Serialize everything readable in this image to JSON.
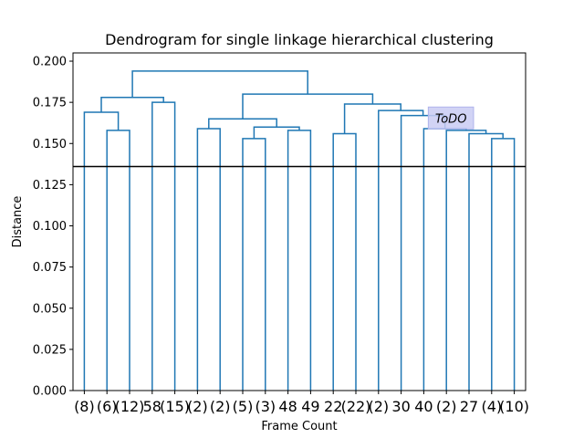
{
  "chart_data": {
    "type": "dendrogram",
    "title": "Dendrogram for single linkage hierarchical clustering",
    "xlabel": "Frame Count",
    "ylabel": "Distance",
    "ylim": [
      0,
      0.205
    ],
    "yticks": [
      "0.000",
      "0.025",
      "0.050",
      "0.075",
      "0.100",
      "0.125",
      "0.150",
      "0.175",
      "0.200"
    ],
    "ytick_values": [
      0,
      0.025,
      0.05,
      0.075,
      0.1,
      0.125,
      0.15,
      0.175,
      0.2
    ],
    "leaf_labels": [
      "(8)",
      "(6)",
      "(12)",
      "58",
      "(15)",
      "(2)",
      "(2)",
      "(5)",
      "(3)",
      "48",
      "49",
      "22",
      "(22)",
      "(2)",
      "30",
      "40",
      "(2)",
      "27",
      "(4)",
      "(10)"
    ],
    "cut_line": 0.136,
    "link_color": "#1f77b4",
    "cut_color": "#000000",
    "annotation": {
      "text": "ToDO",
      "x_between_leaves": [
        15.2,
        17.2
      ],
      "y": 0.1655
    },
    "merges": [
      {
        "left": "L0",
        "right": "L1",
        "height": 0.169
      },
      {
        "left": "L1",
        "right": "L2",
        "height": 0.158
      },
      {
        "left": "L3",
        "right": "L4",
        "height": 0.175
      },
      {
        "left": "L5",
        "right": "L6",
        "height": 0.159
      },
      {
        "left": "L7",
        "right": "L8",
        "height": 0.153
      },
      {
        "left": "L9",
        "right": "L10",
        "height": 0.158
      }
    ],
    "tree": {
      "h": 0.194,
      "c": [
        {
          "h": 0.178,
          "c": [
            {
              "h": 0.169,
              "c": [
                {
                  "leaf": 0
                },
                {
                  "h": 0.158,
                  "c": [
                    {
                      "leaf": 1
                    },
                    {
                      "leaf": 2
                    }
                  ]
                }
              ]
            },
            {
              "h": 0.175,
              "c": [
                {
                  "leaf": 3
                },
                {
                  "leaf": 4
                }
              ]
            }
          ]
        },
        {
          "h": 0.18,
          "c": [
            {
              "h": 0.165,
              "c": [
                {
                  "h": 0.159,
                  "c": [
                    {
                      "leaf": 5
                    },
                    {
                      "leaf": 6
                    }
                  ]
                },
                {
                  "h": 0.16,
                  "c": [
                    {
                      "h": 0.153,
                      "c": [
                        {
                          "leaf": 7
                        },
                        {
                          "leaf": 8
                        }
                      ]
                    },
                    {
                      "h": 0.158,
                      "c": [
                        {
                          "leaf": 9
                        },
                        {
                          "leaf": 10
                        }
                      ]
                    }
                  ]
                }
              ]
            },
            {
              "h": 0.174,
              "c": [
                {
                  "h": 0.156,
                  "c": [
                    {
                      "leaf": 11
                    },
                    {
                      "leaf": 12
                    }
                  ]
                },
                {
                  "h": 0.17,
                  "c": [
                    {
                      "leaf": 13
                    },
                    {
                      "h": 0.167,
                      "c": [
                        {
                          "leaf": 14
                        },
                        {
                          "h": 0.159,
                          "c": [
                            {
                              "leaf": 15
                            },
                            {
                              "h": 0.158,
                              "c": [
                                {
                                  "leaf": 16
                                },
                                {
                                  "h": 0.156,
                                  "c": [
                                    {
                                      "leaf": 17
                                    },
                                    {
                                      "h": 0.153,
                                      "c": [
                                        {
                                          "leaf": 18
                                        },
                                        {
                                          "leaf": 19
                                        }
                                      ]
                                    }
                                  ]
                                }
                              ]
                            }
                          ]
                        }
                      ]
                    }
                  ]
                }
              ]
            }
          ]
        }
      ]
    }
  }
}
